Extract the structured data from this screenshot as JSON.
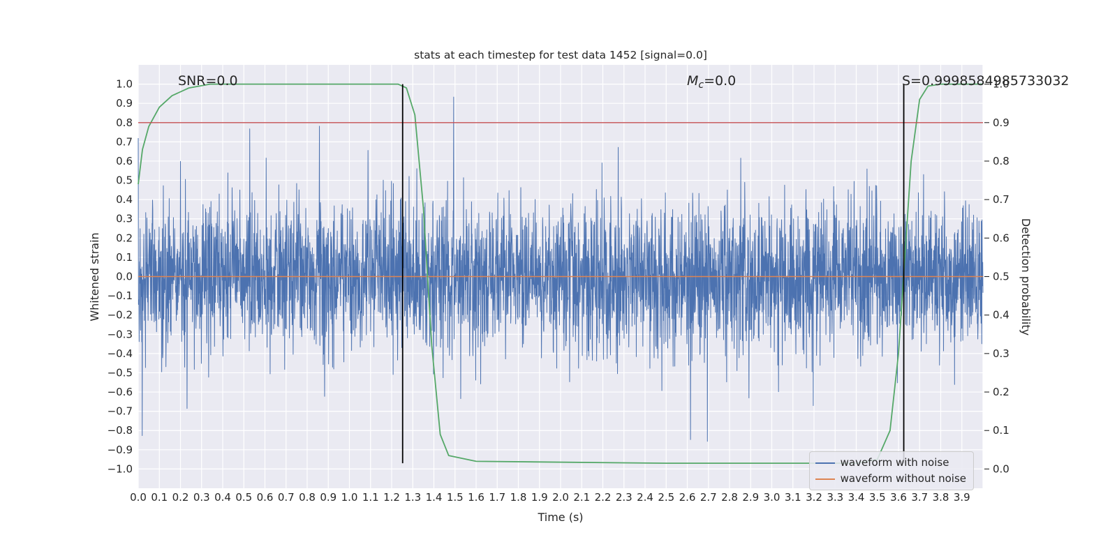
{
  "chart_data": {
    "type": "line",
    "title": "stats at each timestep for test data 1452 [signal=0.0]",
    "xlabel": "Time (s)",
    "ylabel_left": "Whitened strain",
    "ylabel_right": "Detection probability",
    "xlim": [
      0.0,
      4.0
    ],
    "ylim_left": [
      -1.1,
      1.1
    ],
    "ylim_right": [
      0.0,
      1.0
    ],
    "right_axis_mapping": "probability = (strain + 1) / 2",
    "grid": "on",
    "plot_background": "#EAEAF2",
    "grid_color": "#ffffff",
    "x_ticks": [
      "0.0",
      "0.1",
      "0.2",
      "0.3",
      "0.4",
      "0.5",
      "0.6",
      "0.7",
      "0.8",
      "0.9",
      "1.0",
      "1.1",
      "1.2",
      "1.3",
      "1.4",
      "1.5",
      "1.6",
      "1.7",
      "1.8",
      "1.9",
      "2.0",
      "2.1",
      "2.2",
      "2.3",
      "2.4",
      "2.5",
      "2.6",
      "2.7",
      "2.8",
      "2.9",
      "3.0",
      "3.1",
      "3.2",
      "3.3",
      "3.4",
      "3.5",
      "3.6",
      "3.7",
      "3.8",
      "3.9"
    ],
    "y_left_ticks": [
      "1.0",
      "0.9",
      "0.8",
      "0.7",
      "0.6",
      "0.5",
      "0.4",
      "0.3",
      "0.2",
      "0.1",
      "0.0",
      "−0.1",
      "−0.2",
      "−0.3",
      "−0.4",
      "−0.5",
      "−0.6",
      "−0.7",
      "−0.8",
      "−0.9",
      "−1.0"
    ],
    "y_right_ticks": [
      "1.0",
      "0.9",
      "0.8",
      "0.7",
      "0.6",
      "0.5",
      "0.4",
      "0.3",
      "0.2",
      "0.1",
      "0.0"
    ],
    "series": [
      {
        "name": "waveform with noise",
        "color": "#4C72B0",
        "kind": "noise",
        "axis": "left",
        "seed": 1452,
        "n": 3600,
        "std_core": 0.185,
        "spike_prob": 0.055,
        "std_spike": 0.36,
        "clip": 1.04
      },
      {
        "name": "waveform without noise",
        "color": "#DD8452",
        "kind": "hline_left",
        "y": 0.0
      },
      {
        "name": "detection probability",
        "color": "#55A868",
        "kind": "line_right",
        "points": [
          [
            0.0,
            0.74
          ],
          [
            0.02,
            0.83
          ],
          [
            0.05,
            0.89
          ],
          [
            0.1,
            0.94
          ],
          [
            0.16,
            0.97
          ],
          [
            0.24,
            0.99
          ],
          [
            0.34,
            1.0
          ],
          [
            1.23,
            1.0
          ],
          [
            1.27,
            0.99
          ],
          [
            1.31,
            0.92
          ],
          [
            1.35,
            0.68
          ],
          [
            1.39,
            0.32
          ],
          [
            1.43,
            0.09
          ],
          [
            1.47,
            0.035
          ],
          [
            1.6,
            0.02
          ],
          [
            2.5,
            0.015
          ],
          [
            3.4,
            0.015
          ],
          [
            3.5,
            0.025
          ],
          [
            3.56,
            0.1
          ],
          [
            3.6,
            0.3
          ],
          [
            3.63,
            0.55
          ],
          [
            3.66,
            0.8
          ],
          [
            3.7,
            0.96
          ],
          [
            3.74,
            0.995
          ],
          [
            3.8,
            1.0
          ],
          [
            4.0,
            1.0
          ]
        ]
      },
      {
        "name": "detection threshold",
        "color": "#C44E52",
        "kind": "hline_right",
        "p": 0.9
      }
    ],
    "vlines": [
      {
        "x": 1.252,
        "color": "#000000",
        "y_from": -0.97,
        "y_to": 1.0
      },
      {
        "x": 3.625,
        "color": "#000000",
        "y_from": -0.97,
        "y_to": 1.0
      }
    ],
    "annotations": {
      "snr": {
        "text": "SNR=0.0",
        "x_data": 0.19,
        "y_strain": 1.0
      },
      "mc": {
        "m": "M",
        "sub": "c",
        "eq": "=0.0",
        "x_data": 2.6,
        "y_strain": 1.0
      },
      "s": {
        "text": "S=0.9998584985733032",
        "x_data": 3.617,
        "y_strain": 1.0
      }
    },
    "legend": {
      "position": "lower right",
      "entries": [
        {
          "label": "waveform with noise",
          "color": "#4C72B0"
        },
        {
          "label": "waveform without noise",
          "color": "#DD8452"
        }
      ]
    }
  }
}
